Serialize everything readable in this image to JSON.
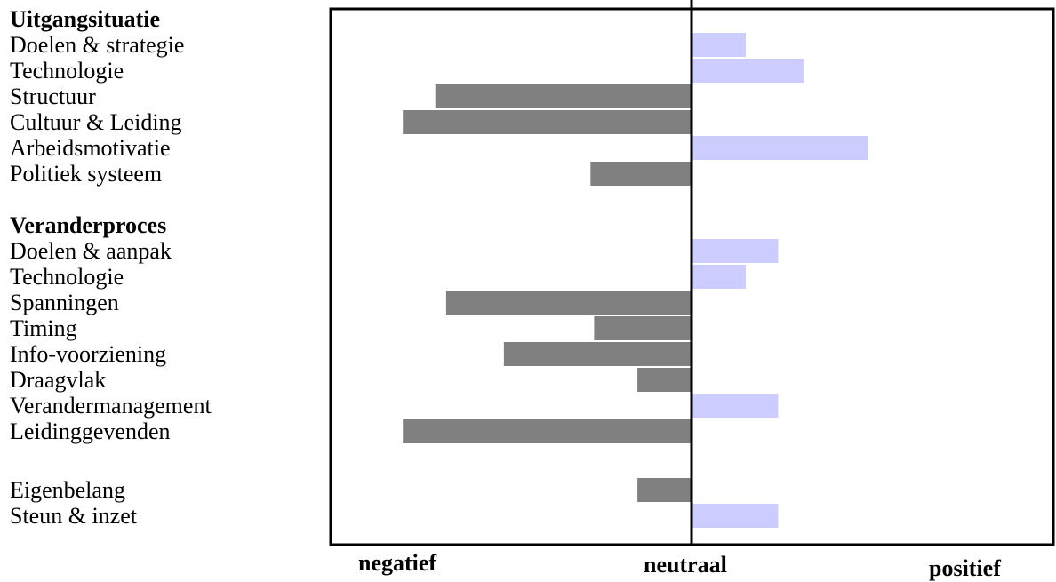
{
  "chart_data": {
    "type": "bar",
    "orientation": "horizontal",
    "groups": [
      {
        "heading": "Uitgangsituatie",
        "items": [
          {
            "label": "Doelen & strategie",
            "value": 0.15
          },
          {
            "label": "Technologie",
            "value": 0.31
          },
          {
            "label": "Structuur",
            "value": -0.71
          },
          {
            "label": "Cultuur & Leiding",
            "value": -0.8
          },
          {
            "label": "Arbeidsmotivatie",
            "value": 0.49
          },
          {
            "label": "Politiek systeem",
            "value": -0.28
          }
        ]
      },
      {
        "heading": "Veranderproces",
        "items": [
          {
            "label": "Doelen & aanpak",
            "value": 0.24
          },
          {
            "label": "Technologie",
            "value": 0.15
          },
          {
            "label": "Spanningen",
            "value": -0.68
          },
          {
            "label": "Timing",
            "value": -0.27
          },
          {
            "label": "Info-voorziening",
            "value": -0.52
          },
          {
            "label": "Draagvlak",
            "value": -0.15
          },
          {
            "label": "Verandermanagement",
            "value": 0.24
          },
          {
            "label": "Leidinggevenden",
            "value": -0.8
          }
        ]
      },
      {
        "heading": "",
        "items": [
          {
            "label": "Eigenbelang",
            "value": -0.15
          },
          {
            "label": "Steun & inzet",
            "value": 0.24
          }
        ]
      }
    ],
    "xlim": [
      -1,
      1
    ],
    "axis_labels": {
      "negative": "negatief",
      "neutral": "neutraal",
      "positive": "positief"
    },
    "colors": {
      "negative": "#808080",
      "positive": "#ccccff"
    },
    "grid": false,
    "legend": "none"
  }
}
